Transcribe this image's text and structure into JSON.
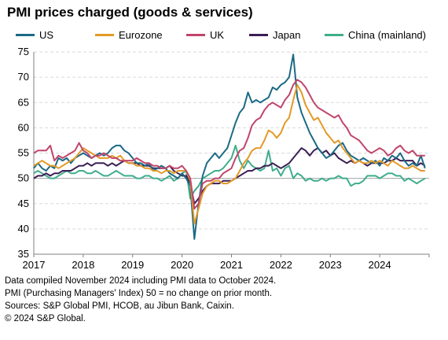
{
  "chart_data": {
    "type": "line",
    "title": "PMI prices charged (goods & services)",
    "xlabel": "",
    "ylabel": "",
    "ylim": [
      35,
      75
    ],
    "yticks": [
      35,
      40,
      45,
      50,
      55,
      60,
      65,
      70,
      75
    ],
    "xticks": [
      "2017",
      "2018",
      "2019",
      "2020",
      "2021",
      "2022",
      "2023",
      "2024"
    ],
    "reference_line": 50,
    "grid": "horizontal dashed",
    "legend_position": "top",
    "x_start": "2017-01",
    "x_end": "2024-10",
    "series": [
      {
        "name": "US",
        "color": "#1b6a86",
        "values": [
          52.0,
          53.0,
          52.0,
          51.5,
          52.5,
          52.0,
          54.0,
          53.5,
          54.0,
          53.0,
          54.0,
          54.5,
          55.0,
          54.5,
          54.0,
          54.5,
          55.0,
          54.5,
          55.0,
          56.0,
          56.5,
          56.5,
          55.5,
          55.0,
          54.0,
          53.0,
          53.0,
          52.5,
          53.0,
          51.5,
          52.0,
          52.5,
          52.0,
          51.0,
          50.5,
          50.0,
          51.0,
          50.0,
          48.5,
          38.0,
          45.0,
          50.5,
          53.0,
          54.0,
          55.0,
          54.0,
          55.0,
          56.0,
          58.5,
          61.0,
          63.0,
          64.0,
          67.0,
          65.0,
          65.5,
          65.0,
          65.5,
          66.0,
          68.0,
          67.5,
          68.5,
          69.0,
          70.0,
          74.5,
          66.0,
          63.0,
          61.0,
          59.0,
          57.5,
          56.0,
          55.0,
          54.0,
          54.5,
          55.5,
          56.5,
          57.0,
          55.5,
          54.5,
          54.0,
          53.5,
          54.0,
          53.5,
          53.0,
          53.5,
          52.5,
          54.0,
          53.5,
          54.5,
          54.0,
          55.0,
          53.5,
          52.5,
          53.0,
          52.5,
          54.5,
          52.0
        ]
      },
      {
        "name": "Eurozone",
        "color": "#e29a28",
        "values": [
          52.5,
          53.0,
          53.5,
          53.0,
          52.5,
          52.5,
          52.0,
          52.5,
          53.0,
          53.5,
          54.0,
          55.0,
          56.0,
          55.5,
          55.0,
          54.5,
          54.0,
          54.0,
          54.0,
          54.5,
          54.0,
          54.5,
          53.5,
          53.0,
          53.0,
          52.5,
          52.5,
          52.0,
          52.0,
          51.5,
          51.5,
          51.0,
          51.5,
          51.5,
          51.0,
          51.5,
          51.5,
          51.5,
          49.5,
          41.0,
          44.0,
          47.0,
          48.5,
          49.0,
          49.5,
          49.5,
          49.0,
          49.0,
          49.5,
          50.0,
          51.5,
          53.0,
          54.0,
          55.5,
          56.0,
          56.0,
          57.5,
          59.5,
          59.0,
          58.0,
          59.0,
          61.0,
          62.0,
          65.5,
          68.5,
          67.0,
          64.5,
          63.0,
          61.5,
          62.0,
          60.5,
          59.0,
          58.0,
          57.0,
          57.5,
          56.0,
          55.0,
          54.0,
          53.0,
          53.5,
          53.0,
          53.0,
          53.5,
          53.0,
          53.5,
          53.0,
          52.5,
          53.5,
          53.0,
          52.5,
          52.0,
          52.0,
          52.5,
          52.0,
          51.5,
          51.5
        ]
      },
      {
        "name": "UK",
        "color": "#c0456a",
        "values": [
          55.0,
          55.5,
          55.5,
          55.5,
          56.5,
          53.5,
          54.5,
          54.0,
          54.5,
          55.0,
          55.5,
          57.0,
          55.5,
          55.0,
          54.0,
          54.5,
          54.5,
          55.0,
          54.5,
          54.0,
          54.0,
          53.5,
          53.5,
          53.5,
          53.5,
          54.0,
          53.5,
          53.0,
          53.0,
          52.5,
          52.5,
          52.0,
          52.0,
          52.5,
          52.0,
          52.0,
          52.5,
          51.5,
          50.0,
          44.0,
          45.0,
          49.0,
          49.5,
          49.5,
          50.0,
          50.0,
          51.0,
          51.5,
          52.0,
          54.0,
          55.5,
          56.0,
          58.0,
          60.5,
          61.5,
          62.0,
          63.5,
          64.5,
          65.0,
          64.5,
          64.0,
          65.5,
          66.5,
          68.5,
          69.5,
          69.0,
          68.0,
          66.5,
          65.0,
          64.0,
          63.5,
          63.0,
          62.5,
          62.0,
          62.5,
          61.0,
          60.0,
          58.5,
          58.0,
          57.5,
          56.5,
          55.5,
          55.0,
          55.5,
          56.0,
          55.5,
          54.5,
          55.0,
          56.0,
          56.5,
          55.5,
          55.0,
          55.5,
          54.5,
          54.5,
          54.5
        ]
      },
      {
        "name": "Japan",
        "color": "#3b1f54",
        "values": [
          50.0,
          50.5,
          50.5,
          51.0,
          50.5,
          51.0,
          51.0,
          51.5,
          51.5,
          51.5,
          52.0,
          52.5,
          52.5,
          53.0,
          52.5,
          53.0,
          53.0,
          53.0,
          52.5,
          53.0,
          52.5,
          53.0,
          53.5,
          53.0,
          53.0,
          53.0,
          52.5,
          52.5,
          52.5,
          52.0,
          52.0,
          52.0,
          52.0,
          52.5,
          51.5,
          51.0,
          50.5,
          50.5,
          49.0,
          45.0,
          46.0,
          47.5,
          48.5,
          49.0,
          49.0,
          49.0,
          49.5,
          49.5,
          49.5,
          50.0,
          50.5,
          51.0,
          51.5,
          51.5,
          52.0,
          52.0,
          52.5,
          52.5,
          53.0,
          52.5,
          52.0,
          52.5,
          53.0,
          54.0,
          55.0,
          56.0,
          55.5,
          54.5,
          55.5,
          56.0,
          55.0,
          55.5,
          54.5,
          55.0,
          54.0,
          53.5,
          53.0,
          53.5,
          53.0,
          53.5,
          53.0,
          52.5,
          53.0,
          53.0,
          53.0,
          53.0,
          53.5,
          53.5,
          54.0,
          53.5,
          53.5,
          53.5,
          53.5,
          52.5,
          53.0,
          52.5
        ]
      },
      {
        "name": "China (mainland)",
        "color": "#3fad8c",
        "values": [
          51.0,
          51.5,
          51.0,
          50.5,
          50.0,
          50.0,
          50.5,
          51.0,
          51.5,
          51.0,
          51.0,
          51.5,
          51.5,
          51.0,
          51.0,
          51.5,
          51.0,
          50.5,
          50.5,
          51.0,
          51.5,
          51.0,
          50.5,
          50.5,
          50.5,
          50.0,
          50.0,
          50.5,
          50.5,
          50.0,
          50.0,
          49.5,
          50.0,
          50.5,
          49.5,
          50.0,
          51.0,
          51.5,
          46.0,
          47.5,
          48.5,
          50.0,
          50.5,
          51.0,
          51.5,
          51.5,
          52.0,
          53.0,
          54.0,
          56.5,
          53.5,
          52.0,
          53.5,
          52.5,
          52.0,
          51.5,
          52.0,
          55.5,
          51.5,
          52.0,
          50.5,
          52.0,
          52.5,
          50.0,
          51.0,
          50.5,
          49.5,
          50.0,
          49.5,
          49.5,
          50.0,
          49.5,
          50.0,
          50.0,
          50.5,
          50.0,
          50.0,
          48.5,
          49.0,
          49.0,
          49.5,
          50.5,
          50.5,
          50.5,
          50.0,
          50.5,
          51.0,
          51.0,
          50.5,
          50.5,
          49.5,
          50.0,
          49.5,
          49.0,
          49.5,
          50.0
        ]
      }
    ]
  },
  "notes": [
    "Data compiled November 2024 including PMI data to October 2024.",
    "PMI (Purchasing Managers' Index) 50 = no change on prior month.",
    "Sources: S&P Global PMI, HCOB, au Jibun Bank, Caixin.",
    "© 2024 S&P Global."
  ]
}
